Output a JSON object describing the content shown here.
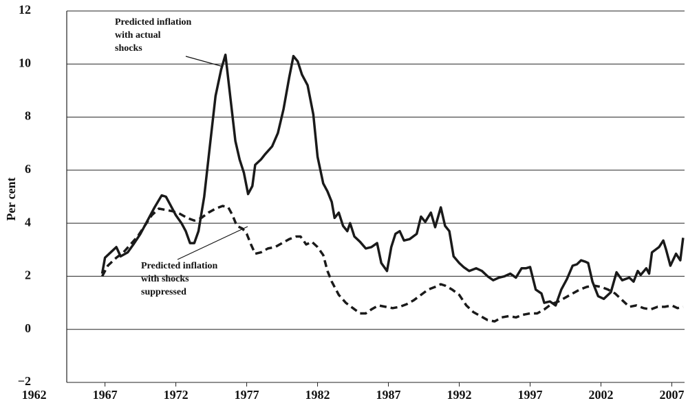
{
  "chart_data": {
    "type": "line",
    "y_label": "Per cent",
    "xlim": [
      1964.3,
      2007.9
    ],
    "xticks": [
      1962,
      1967,
      1972,
      1977,
      1982,
      1987,
      1992,
      1997,
      2002,
      2007
    ],
    "ylim": [
      -2,
      12
    ],
    "yticks": [
      {
        "value": -2,
        "label": "−2"
      },
      0,
      2,
      4,
      6,
      8,
      10,
      12
    ],
    "grid": true,
    "annotations": [
      {
        "lines": [
          "Predicted inflation",
          "with actual",
          "shocks"
        ]
      },
      {
        "lines": [
          "Predicted inflation",
          "with shocks",
          "suppressed"
        ]
      }
    ],
    "series": [
      {
        "color": "#1a1a1a",
        "line_style": "solid",
        "x": [
          1966.8,
          1967.0,
          1967.5,
          1967.8,
          1968.1,
          1968.6,
          1969.0,
          1969.5,
          1970.0,
          1970.5,
          1971.0,
          1971.3,
          1971.6,
          1972.0,
          1972.4,
          1972.7,
          1973.0,
          1973.3,
          1973.6,
          1974.0,
          1974.4,
          1974.8,
          1975.2,
          1975.5,
          1975.9,
          1976.2,
          1976.5,
          1976.8,
          1977.1,
          1977.4,
          1977.6,
          1978.0,
          1978.3,
          1978.8,
          1979.2,
          1979.6,
          1980.0,
          1980.3,
          1980.6,
          1980.9,
          1981.3,
          1981.7,
          1982.0,
          1982.4,
          1982.7,
          1983.0,
          1983.2,
          1983.5,
          1983.8,
          1984.1,
          1984.3,
          1984.6,
          1985.0,
          1985.4,
          1985.8,
          1986.2,
          1986.5,
          1986.9,
          1987.2,
          1987.5,
          1987.8,
          1988.1,
          1988.5,
          1989.0,
          1989.3,
          1989.6,
          1990.0,
          1990.3,
          1990.7,
          1991.0,
          1991.3,
          1991.6,
          1992.0,
          1992.3,
          1992.7,
          1993.2,
          1993.6,
          1994.0,
          1994.4,
          1994.8,
          1995.2,
          1995.6,
          1996.0,
          1996.4,
          1996.7,
          1997.0,
          1997.4,
          1997.8,
          1998.0,
          1998.4,
          1998.8,
          1999.2,
          1999.6,
          2000.0,
          2000.3,
          2000.6,
          2000.9,
          2001.1,
          2001.4,
          2001.8,
          2002.2,
          2002.7,
          2003.1,
          2003.5,
          2004.0,
          2004.3,
          2004.6,
          2004.8,
          2005.2,
          2005.4,
          2005.6,
          2006.1,
          2006.4,
          2006.6,
          2006.9,
          2007.3,
          2007.6,
          2007.8
        ],
        "values": [
          2.1,
          2.7,
          2.95,
          3.1,
          2.75,
          2.9,
          3.2,
          3.6,
          4.1,
          4.6,
          5.05,
          5.0,
          4.7,
          4.3,
          4.0,
          3.7,
          3.25,
          3.25,
          3.7,
          5.0,
          6.9,
          8.8,
          9.8,
          10.35,
          8.5,
          7.1,
          6.4,
          5.9,
          5.1,
          5.4,
          6.2,
          6.4,
          6.6,
          6.9,
          7.4,
          8.3,
          9.5,
          10.3,
          10.1,
          9.6,
          9.2,
          8.1,
          6.5,
          5.5,
          5.2,
          4.8,
          4.2,
          4.4,
          3.9,
          3.7,
          4.0,
          3.5,
          3.3,
          3.05,
          3.1,
          3.25,
          2.5,
          2.2,
          3.1,
          3.6,
          3.7,
          3.35,
          3.4,
          3.6,
          4.25,
          4.05,
          4.4,
          3.85,
          4.6,
          3.9,
          3.7,
          2.75,
          2.5,
          2.35,
          2.2,
          2.3,
          2.2,
          2.0,
          1.85,
          1.95,
          2.0,
          2.1,
          1.95,
          2.3,
          2.3,
          2.35,
          1.5,
          1.35,
          1.0,
          1.05,
          0.9,
          1.5,
          1.9,
          2.4,
          2.45,
          2.6,
          2.55,
          2.5,
          1.8,
          1.25,
          1.15,
          1.4,
          2.15,
          1.85,
          1.95,
          1.8,
          2.2,
          2.05,
          2.3,
          2.1,
          2.9,
          3.1,
          3.35,
          3.0,
          2.4,
          2.85,
          2.6,
          3.45
        ]
      },
      {
        "color": "#1a1a1a",
        "line_style": "dashed",
        "x": [
          1966.8,
          1967.2,
          1967.8,
          1968.3,
          1968.8,
          1969.3,
          1969.8,
          1970.3,
          1970.8,
          1971.3,
          1971.8,
          1972.3,
          1972.8,
          1973.3,
          1973.8,
          1974.3,
          1974.8,
          1975.3,
          1975.7,
          1976.0,
          1976.3,
          1976.7,
          1977.0,
          1977.3,
          1977.6,
          1978.0,
          1978.5,
          1979.0,
          1979.5,
          1980.0,
          1980.5,
          1980.8,
          1981.2,
          1981.6,
          1982.0,
          1982.4,
          1982.7,
          1983.0,
          1983.5,
          1984.0,
          1984.5,
          1985.0,
          1985.4,
          1985.8,
          1986.3,
          1986.8,
          1987.3,
          1987.8,
          1988.3,
          1988.8,
          1989.3,
          1989.8,
          1990.3,
          1990.7,
          1991.0,
          1991.5,
          1992.0,
          1992.5,
          1993.0,
          1993.5,
          1994.0,
          1994.5,
          1995.0,
          1995.5,
          1996.0,
          1996.5,
          1997.0,
          1997.5,
          1998.0,
          1998.5,
          1999.0,
          1999.5,
          2000.0,
          2000.5,
          2001.0,
          2001.5,
          2002.0,
          2002.5,
          2003.0,
          2003.5,
          2004.0,
          2004.5,
          2005.0,
          2005.5,
          2006.0,
          2006.5,
          2007.0,
          2007.4,
          2007.8
        ],
        "values": [
          2.0,
          2.4,
          2.7,
          2.9,
          3.2,
          3.5,
          3.9,
          4.3,
          4.55,
          4.5,
          4.45,
          4.35,
          4.2,
          4.1,
          4.2,
          4.4,
          4.55,
          4.65,
          4.6,
          4.3,
          3.9,
          3.8,
          3.6,
          3.2,
          2.85,
          2.9,
          3.05,
          3.1,
          3.25,
          3.4,
          3.5,
          3.5,
          3.2,
          3.3,
          3.1,
          2.8,
          2.2,
          1.8,
          1.3,
          1.0,
          0.8,
          0.6,
          0.6,
          0.75,
          0.9,
          0.85,
          0.8,
          0.85,
          0.95,
          1.1,
          1.3,
          1.5,
          1.6,
          1.7,
          1.65,
          1.5,
          1.3,
          0.9,
          0.65,
          0.5,
          0.35,
          0.3,
          0.45,
          0.5,
          0.45,
          0.55,
          0.6,
          0.6,
          0.75,
          0.95,
          1.05,
          1.2,
          1.35,
          1.5,
          1.6,
          1.65,
          1.6,
          1.5,
          1.35,
          1.1,
          0.85,
          0.9,
          0.8,
          0.75,
          0.85,
          0.85,
          0.9,
          0.8,
          0.85
        ]
      }
    ]
  }
}
